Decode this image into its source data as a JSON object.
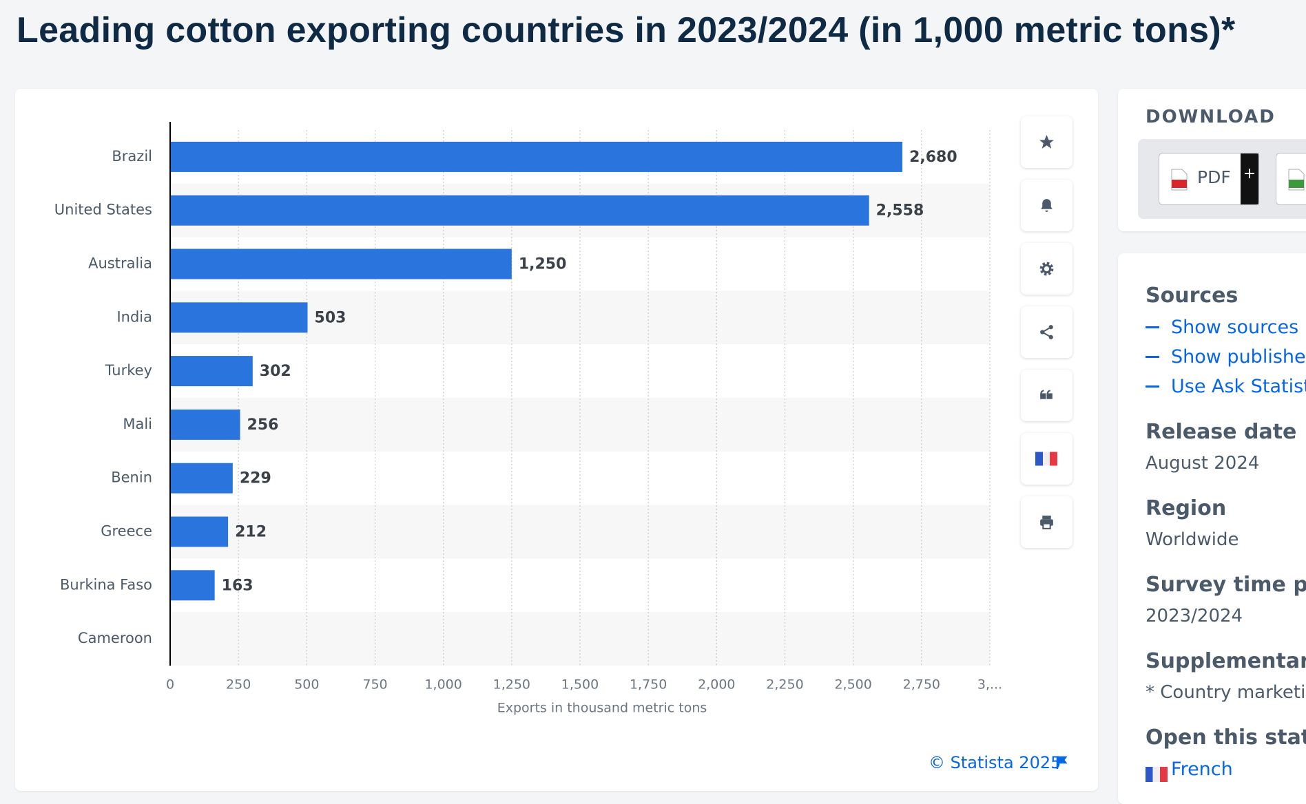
{
  "header": {
    "title": "Leading cotton exporting countries in 2023/2024 (in 1,000 metric tons)*"
  },
  "chart_data": {
    "type": "bar",
    "orientation": "horizontal",
    "categories": [
      "Brazil",
      "United States",
      "Australia",
      "India",
      "Turkey",
      "Mali",
      "Benin",
      "Greece",
      "Burkina Faso",
      "Cameroon"
    ],
    "values": [
      2680,
      2558,
      1250,
      503,
      302,
      256,
      229,
      212,
      163,
      null
    ],
    "value_labels": [
      "2,680",
      "2,558",
      "1,250",
      "503",
      "302",
      "256",
      "229",
      "212",
      "163",
      null
    ],
    "color": "#2a74de",
    "xlim": [
      0,
      3000
    ],
    "xticks": [
      0,
      250,
      500,
      750,
      {
        "value": 1000,
        "label": "1,000"
      },
      {
        "value": 1250,
        "label": "1,250"
      },
      {
        "value": 1500,
        "label": "1,500"
      },
      {
        "value": 1750,
        "label": "1,750"
      },
      {
        "value": 2000,
        "label": "2,000"
      },
      {
        "value": 2250,
        "label": "2,250"
      },
      {
        "value": 2500,
        "label": "2,500"
      },
      {
        "value": 2750,
        "label": "2,750"
      },
      {
        "value": 3000,
        "label": "3,..."
      }
    ],
    "x_label": "Exports in thousand metric tons",
    "grid": true
  },
  "download": {
    "title": "DOWNLOAD",
    "pdf": "PDF",
    "plus": "+"
  },
  "details": [
    {
      "heading": "Sources",
      "links": [
        "Show sources in",
        "Show publisher",
        "Use Ask Statista"
      ]
    },
    {
      "heading": "Release date",
      "text": "August 2024"
    },
    {
      "heading": "Region",
      "text": "Worldwide"
    },
    {
      "heading": "Survey time per",
      "text": "2023/2024"
    },
    {
      "heading": "Supplementary",
      "text": "* Country marketin"
    },
    {
      "heading": "Open this statis",
      "links": [
        "French"
      ]
    }
  ],
  "footer": {
    "copyright": "© Statista 2025"
  }
}
